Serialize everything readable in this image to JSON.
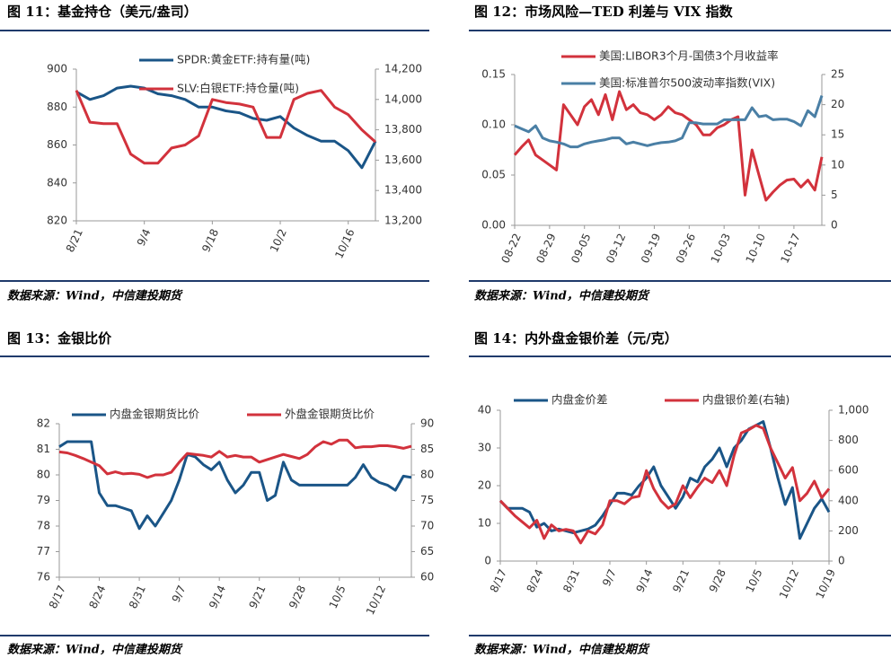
{
  "chart_data": [
    {
      "type": "line",
      "title": "图 11：基金持仓（美元/盎司）",
      "source": "数据来源：Wind，中信建投期货",
      "categories": [
        "8/21",
        null,
        null,
        null,
        null,
        "9/4",
        null,
        null,
        null,
        null,
        "9/18",
        null,
        null,
        null,
        null,
        "10/2",
        null,
        null,
        null,
        null,
        "10/16",
        null,
        null
      ],
      "ylim": [
        820,
        900
      ],
      "yticks": [
        820,
        840,
        860,
        880,
        900
      ],
      "y2lim": [
        13200,
        14200
      ],
      "y2ticks": [
        {
          "value": 13200,
          "label": "13,200"
        },
        {
          "value": 13400,
          "label": "13,400"
        },
        {
          "value": 13600,
          "label": "13,600"
        },
        {
          "value": 13800,
          "label": "13,800"
        },
        {
          "value": 14000,
          "label": "14,000"
        },
        {
          "value": 14200,
          "label": "14,200"
        }
      ],
      "series": [
        {
          "name": "SPDR:黄金ETF:持有量(吨)",
          "color": "#1a5587",
          "values": [
            888,
            884,
            886,
            890,
            891,
            890,
            887,
            886,
            884,
            880,
            880,
            878,
            877,
            874,
            873,
            875,
            869,
            865,
            862,
            862,
            857,
            848,
            862
          ]
        },
        {
          "name": "SLV:白银ETF:持仓量(吨)",
          "color": "#d2323c",
          "axis": "y2",
          "values": [
            14060,
            13850,
            13840,
            13840,
            13640,
            13580,
            13580,
            13680,
            13700,
            13760,
            14000,
            13980,
            13970,
            13950,
            13750,
            13750,
            14000,
            14040,
            14060,
            13950,
            13900,
            13800,
            13720
          ]
        }
      ]
    },
    {
      "type": "line",
      "title": "图 12：市场风险—TED 利差与 VIX 指数",
      "source": "数据来源：Wind，中信建投期货",
      "categories": [
        "08-22",
        null,
        null,
        null,
        null,
        "08-29",
        null,
        null,
        null,
        null,
        "09-05",
        null,
        null,
        null,
        null,
        "09-12",
        null,
        null,
        null,
        null,
        "09-19",
        null,
        null,
        null,
        null,
        "09-26",
        null,
        null,
        null,
        null,
        "10-03",
        null,
        null,
        null,
        null,
        "10-10",
        null,
        null,
        null,
        null,
        "10-17",
        null,
        null,
        null,
        null
      ],
      "ylim": [
        0,
        0.15
      ],
      "yticks": [
        {
          "value": 0,
          "label": "0.00"
        },
        {
          "value": 0.05,
          "label": "0.05"
        },
        {
          "value": 0.1,
          "label": "0.10"
        },
        {
          "value": 0.15,
          "label": "0.15"
        }
      ],
      "y2lim": [
        0,
        25
      ],
      "y2ticks": [
        0,
        5,
        10,
        15,
        20,
        25
      ],
      "series": [
        {
          "name": "美国:LIBOR3个月-国债3个月收益率",
          "color": "#d2323c",
          "values": [
            0.07,
            0.078,
            0.085,
            0.07,
            0.065,
            0.06,
            0.055,
            0.12,
            0.11,
            0.1,
            0.118,
            0.125,
            0.11,
            0.13,
            0.105,
            0.133,
            0.115,
            0.12,
            0.112,
            0.11,
            0.105,
            0.11,
            0.118,
            0.112,
            0.11,
            0.105,
            0.1,
            0.09,
            0.09,
            0.097,
            0.1,
            0.105,
            0.108,
            0.03,
            0.075,
            0.05,
            0.025,
            0.033,
            0.04,
            0.045,
            0.046,
            0.038,
            0.045,
            0.035,
            0.068
          ]
        },
        {
          "name": "美国:标准普尔500波动率指数(VIX)",
          "color": "#4a7fa5",
          "axis": "y2",
          "values": [
            16.5,
            16,
            15.5,
            16.5,
            14.5,
            14,
            13.8,
            13.5,
            13,
            13,
            13.5,
            13.8,
            14,
            14.2,
            14.5,
            14.5,
            13.5,
            13.8,
            13.5,
            13.2,
            13.5,
            13.7,
            13.8,
            14,
            14.5,
            17,
            17,
            16.8,
            16.8,
            16.8,
            17.5,
            17.5,
            17.5,
            17.5,
            19.5,
            18,
            18.2,
            17.5,
            17.6,
            17.6,
            17.2,
            16.5,
            19,
            18,
            21.5
          ]
        }
      ]
    },
    {
      "type": "line",
      "title": "图 13：金银比价",
      "source": "数据来源：Wind，中信建投期货",
      "categories": [
        "8/17",
        null,
        null,
        null,
        null,
        "8/24",
        null,
        null,
        null,
        null,
        "8/31",
        null,
        null,
        null,
        null,
        "9/7",
        null,
        null,
        null,
        null,
        "9/14",
        null,
        null,
        null,
        null,
        "9/21",
        null,
        null,
        null,
        null,
        "9/28",
        null,
        null,
        null,
        null,
        "10/5",
        null,
        null,
        null,
        null,
        "10/12",
        null,
        null,
        null,
        null
      ],
      "ylim": [
        76,
        82
      ],
      "yticks": [
        76,
        77,
        78,
        79,
        80,
        81,
        82
      ],
      "y2lim": [
        60,
        90
      ],
      "y2ticks": [
        60,
        65,
        70,
        75,
        80,
        85,
        90
      ],
      "series": [
        {
          "name": "内盘金银期货比价",
          "color": "#1a5587",
          "values": [
            81.1,
            81.3,
            81.3,
            81.3,
            81.3,
            79.3,
            78.8,
            78.8,
            78.7,
            78.6,
            77.9,
            78.4,
            78.0,
            78.5,
            79.0,
            79.8,
            80.8,
            80.7,
            80.4,
            80.2,
            80.5,
            79.8,
            79.3,
            79.6,
            80.1,
            80.1,
            79.0,
            79.2,
            80.5,
            79.8,
            79.6,
            79.6,
            79.6,
            79.6,
            79.6,
            79.6,
            79.6,
            79.9,
            80.4,
            79.9,
            79.7,
            79.6,
            79.4,
            79.95,
            79.9
          ]
        },
        {
          "name": "外盘金银期货比价",
          "color": "#d2323c",
          "axis": "y2",
          "values": [
            84.5,
            84.3,
            83.8,
            83.2,
            82.5,
            81.8,
            80.2,
            80.6,
            80.2,
            80.3,
            80.1,
            79.5,
            80,
            80,
            80.5,
            82.5,
            84.2,
            84,
            83.8,
            83.5,
            84.6,
            83.5,
            83.8,
            83.5,
            83.5,
            82.5,
            83,
            83.5,
            84,
            83.6,
            83.2,
            84,
            85.5,
            86.5,
            86,
            86.8,
            86.8,
            85.3,
            85.5,
            85.5,
            85.7,
            85.7,
            85.5,
            85.2,
            85.6
          ]
        }
      ]
    },
    {
      "type": "line",
      "title": "图 14：内外盘金银价差（元/克）",
      "source": "数据来源：Wind，中信建投期货",
      "categories": [
        "8/17",
        null,
        null,
        null,
        null,
        "8/24",
        null,
        null,
        null,
        null,
        "8/31",
        null,
        null,
        null,
        null,
        "9/7",
        null,
        null,
        null,
        null,
        "9/14",
        null,
        null,
        null,
        null,
        "9/21",
        null,
        null,
        null,
        null,
        "9/28",
        null,
        null,
        null,
        null,
        "10/5",
        null,
        null,
        null,
        null,
        "10/12",
        null,
        null,
        null,
        null,
        "10/19"
      ],
      "ylim": [
        0,
        40
      ],
      "yticks": [
        0,
        10,
        20,
        30,
        40
      ],
      "y2lim": [
        0,
        1000
      ],
      "y2ticks": [
        0,
        200,
        400,
        600,
        800,
        {
          "value": 1000,
          "label": "1,000"
        }
      ],
      "series": [
        {
          "name": "内盘金价差",
          "color": "#1a5587",
          "values": [
            16,
            14,
            14,
            14,
            13,
            9,
            10,
            8,
            8.5,
            8,
            7.5,
            8,
            8.5,
            9.5,
            12,
            15,
            18,
            18,
            17.5,
            20,
            22,
            25,
            20,
            17,
            14,
            17,
            22,
            21,
            25,
            27,
            30,
            25,
            30,
            32,
            35,
            36,
            37,
            30,
            22,
            15,
            19.5,
            6,
            10,
            14,
            16.5,
            13
          ]
        },
        {
          "name": "内盘银价差(右轴)",
          "color": "#d2323c",
          "axis": "y2",
          "values": [
            400,
            350,
            300,
            260,
            220,
            270,
            150,
            240,
            200,
            210,
            200,
            120,
            200,
            180,
            240,
            400,
            400,
            380,
            420,
            430,
            600,
            480,
            400,
            350,
            380,
            500,
            420,
            490,
            550,
            520,
            600,
            500,
            700,
            850,
            870,
            900,
            880,
            750,
            650,
            550,
            620,
            400,
            450,
            530,
            420,
            480
          ]
        }
      ]
    }
  ]
}
